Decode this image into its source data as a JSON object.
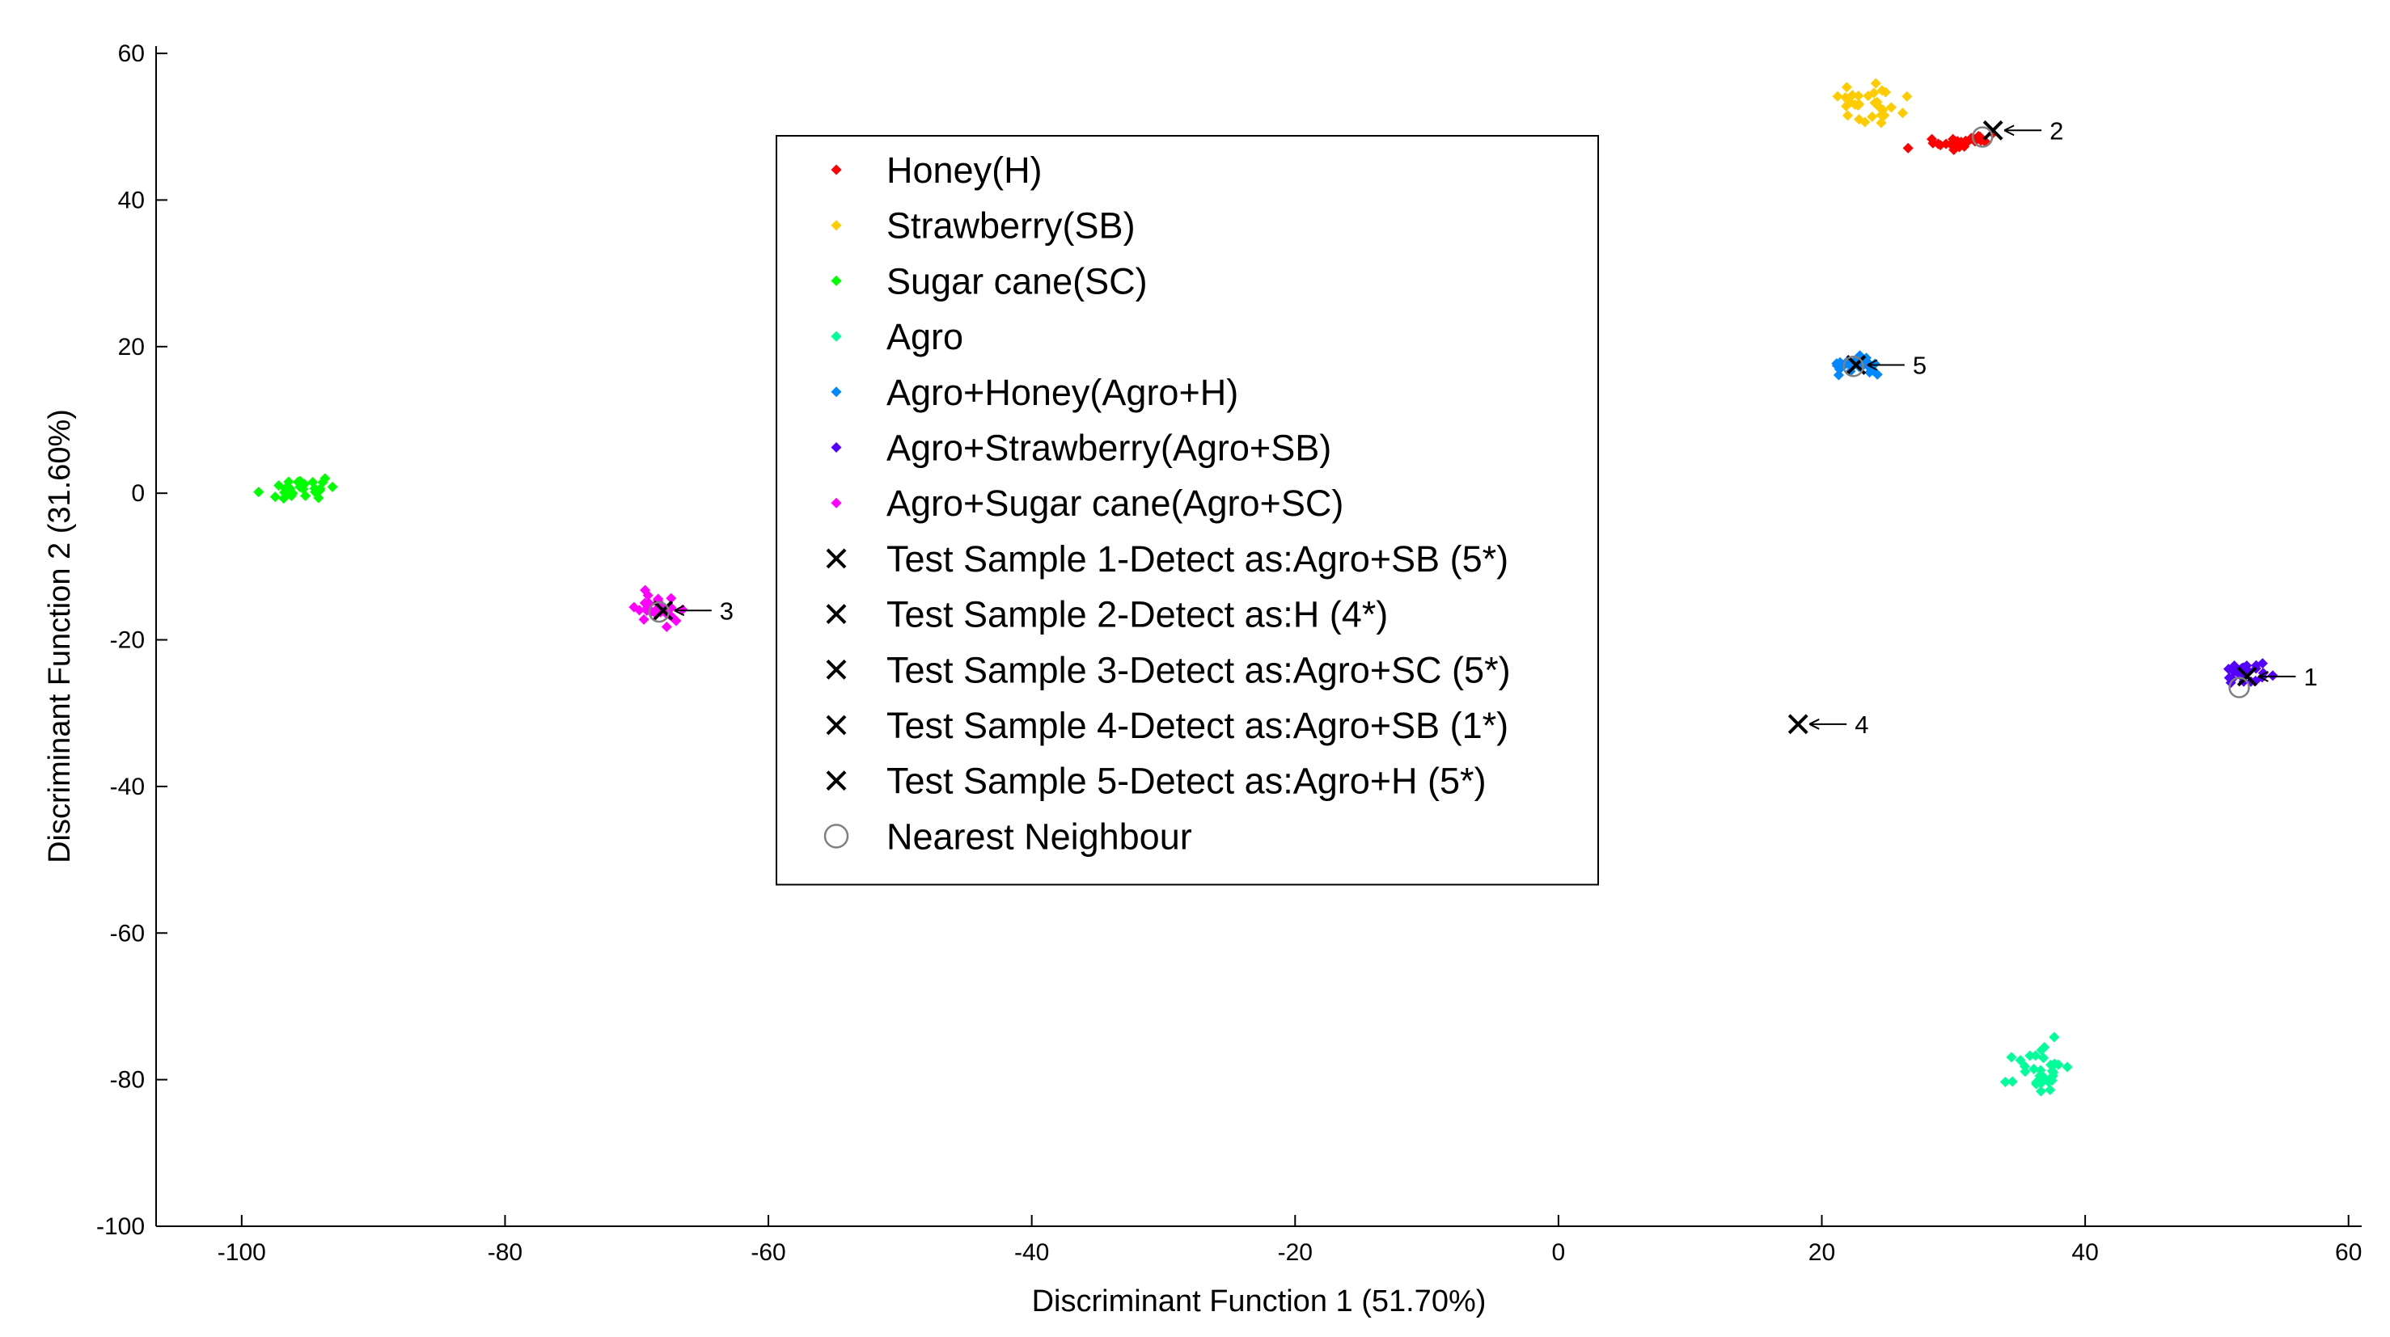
{
  "chart_data": {
    "type": "scatter",
    "title": "",
    "xlabel": "Discriminant Function 1 (51.70%)",
    "ylabel": "Discriminant Function 2 (31.60%)",
    "xlim": [
      -106.5,
      61
    ],
    "ylim": [
      -100,
      61
    ],
    "xticks": [
      -100,
      -80,
      -60,
      -40,
      -20,
      0,
      20,
      40,
      60
    ],
    "yticks": [
      -100,
      -80,
      -60,
      -40,
      -20,
      0,
      20,
      40,
      60
    ],
    "grid": false,
    "legend_position": "top-center",
    "series": [
      {
        "name": "Honey(H)",
        "marker": "dot",
        "color": "#ff0000",
        "cluster": {
          "cx": 30.5,
          "cy": 47.8,
          "sx": 3.0,
          "sy": 1.0,
          "n": 30,
          "slope": 0.3
        }
      },
      {
        "name": "Strawberry(SB)",
        "marker": "dot",
        "color": "#ffcc00",
        "cluster": {
          "cx": 23.5,
          "cy": 53.2,
          "sx": 2.6,
          "sy": 2.5,
          "n": 30,
          "slope": 0
        }
      },
      {
        "name": "Sugar cane(SC)",
        "marker": "dot",
        "color": "#00ff00",
        "cluster": {
          "cx": -96,
          "cy": 0.5,
          "sx": 2.8,
          "sy": 1.2,
          "n": 30,
          "slope": 0.2
        }
      },
      {
        "name": "Agro",
        "marker": "dot",
        "color": "#00ff99",
        "cluster": {
          "cx": 36.8,
          "cy": -78.5,
          "sx": 2.2,
          "sy": 3.5,
          "n": 30,
          "slope": 0
        }
      },
      {
        "name": "Agro+Honey(Agro+H)",
        "marker": "dot",
        "color": "#0088ff",
        "cluster": {
          "cx": 22.5,
          "cy": 17.5,
          "sx": 2.2,
          "sy": 1.2,
          "n": 30,
          "slope": 0
        }
      },
      {
        "name": "Agro+Strawberry(Agro+SB)",
        "marker": "dot",
        "color": "#5500ff",
        "cluster": {
          "cx": 52.5,
          "cy": -24.8,
          "sx": 1.8,
          "sy": 1.3,
          "n": 30,
          "slope": 0
        }
      },
      {
        "name": "Agro+Sugar cane(Agro+SC)",
        "marker": "dot",
        "color": "#ff00ff",
        "cluster": {
          "cx": -68.2,
          "cy": -15.8,
          "sx": 1.6,
          "sy": 2.0,
          "n": 30,
          "slope": 0
        }
      },
      {
        "name": "Test Sample 1-Detect as:Agro+SB (5*)",
        "marker": "x",
        "color": "#000000",
        "x": [
          52.3
        ],
        "y": [
          -25.0
        ],
        "label": "1"
      },
      {
        "name": "Test Sample 2-Detect as:H (4*)",
        "marker": "x",
        "color": "#000000",
        "x": [
          33
        ],
        "y": [
          49.5
        ],
        "label": "2"
      },
      {
        "name": "Test Sample 3-Detect as:Agro+SC (5*)",
        "marker": "x",
        "color": "#000000",
        "x": [
          -68
        ],
        "y": [
          -16
        ],
        "label": "3"
      },
      {
        "name": "Test Sample 4-Detect as:Agro+SB (1*)",
        "marker": "x",
        "color": "#000000",
        "x": [
          18.2
        ],
        "y": [
          -31.5
        ],
        "label": "4"
      },
      {
        "name": "Test Sample 5-Detect as:Agro+H (5*)",
        "marker": "x",
        "color": "#000000",
        "x": [
          22.6
        ],
        "y": [
          17.5
        ],
        "label": "5"
      },
      {
        "name": "Nearest Neighbour",
        "marker": "circle",
        "color": "#808080",
        "x": [
          51.7,
          32.2,
          -68.3,
          22.4
        ],
        "y": [
          -26.5,
          48.6,
          -16.2,
          17.3
        ]
      }
    ],
    "annotations": [
      {
        "text": "1",
        "x": 52.3,
        "y": -25.0
      },
      {
        "text": "2",
        "x": 33,
        "y": 49.5
      },
      {
        "text": "3",
        "x": -68,
        "y": -16
      },
      {
        "text": "4",
        "x": 18.2,
        "y": -31.5
      },
      {
        "text": "5",
        "x": 22.6,
        "y": 17.5
      }
    ]
  }
}
